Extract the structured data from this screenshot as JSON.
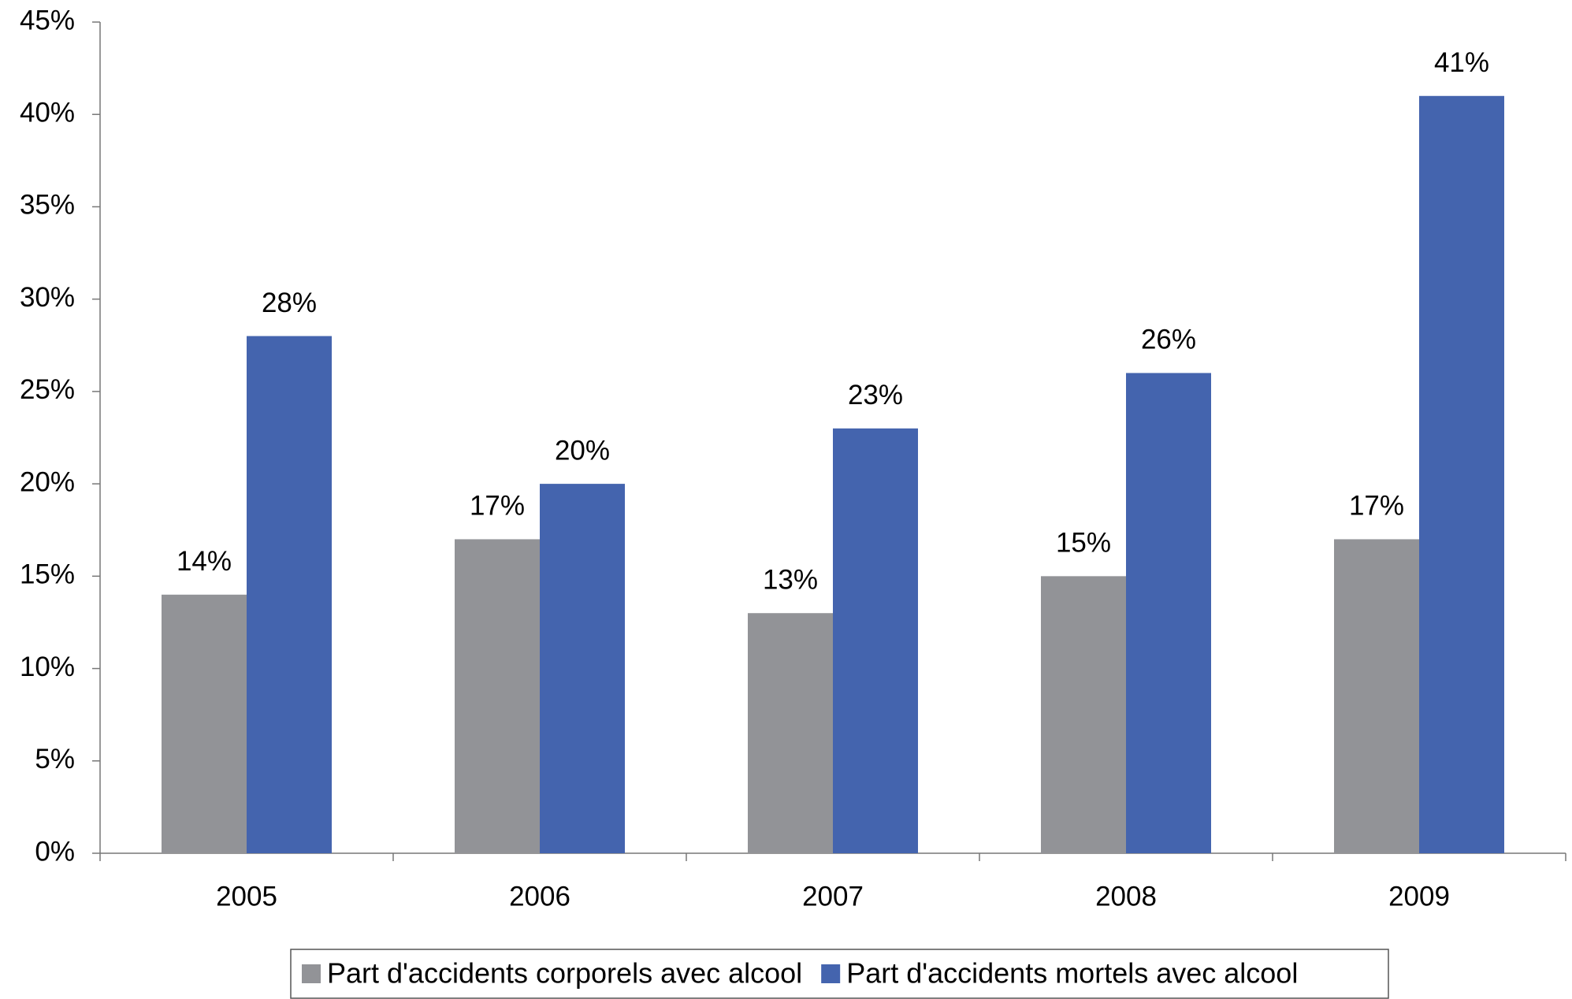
{
  "chart_data": {
    "type": "bar",
    "categories": [
      "2005",
      "2006",
      "2007",
      "2008",
      "2009"
    ],
    "series": [
      {
        "name": "Part d'accidents corporels avec alcool",
        "color": "#929397",
        "values": [
          14,
          17,
          13,
          15,
          17
        ],
        "value_labels": [
          "14%",
          "17%",
          "13%",
          "15%",
          "17%"
        ]
      },
      {
        "name": "Part d'accidents mortels avec alcool",
        "color": "#4464ae",
        "values": [
          28,
          20,
          23,
          26,
          41
        ],
        "value_labels": [
          "28%",
          "20%",
          "23%",
          "26%",
          "41%"
        ]
      }
    ],
    "ylim": [
      0,
      45
    ],
    "yticks": [
      {
        "value": 0,
        "label": "0%"
      },
      {
        "value": 5,
        "label": "5%"
      },
      {
        "value": 10,
        "label": "10%"
      },
      {
        "value": 15,
        "label": "15%"
      },
      {
        "value": 20,
        "label": "20%"
      },
      {
        "value": 25,
        "label": "25%"
      },
      {
        "value": 30,
        "label": "30%"
      },
      {
        "value": 35,
        "label": "35%"
      },
      {
        "value": 40,
        "label": "40%"
      },
      {
        "value": 45,
        "label": "45%"
      }
    ],
    "grid": false,
    "legend": "bottom"
  }
}
